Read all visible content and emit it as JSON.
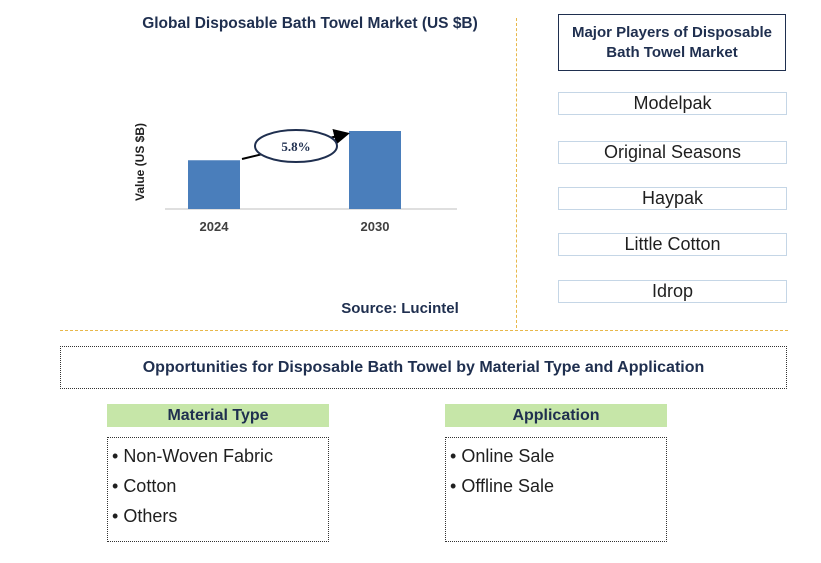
{
  "chart_data": {
    "type": "bar",
    "title": "Global Disposable Bath Towel Market (US $B)",
    "ylabel": "Value (US $B)",
    "xlabel": "",
    "categories": [
      "2024",
      "2030"
    ],
    "values": [
      1.0,
      1.6
    ],
    "annotation": "5.8%",
    "bar_color": "#4a7ebb",
    "source": "Source: Lucintel"
  },
  "players": {
    "title": "Major Players of Disposable Bath Towel Market",
    "items": [
      "Modelpak",
      "Original Seasons",
      "Haypak",
      "Little Cotton",
      "Idrop"
    ]
  },
  "opportunities": {
    "title": "Opportunities for Disposable Bath Towel by Material Type and Application",
    "segments": [
      {
        "title": "Material Type",
        "items": [
          "Non-Woven Fabric",
          "Cotton",
          "Others"
        ]
      },
      {
        "title": "Application",
        "items": [
          "Online Sale",
          "Offline Sale"
        ]
      }
    ]
  },
  "colors": {
    "header_green": "#c6e6a8",
    "divider_gold": "#e8b84a",
    "text_navy": "#1f2f4f"
  }
}
